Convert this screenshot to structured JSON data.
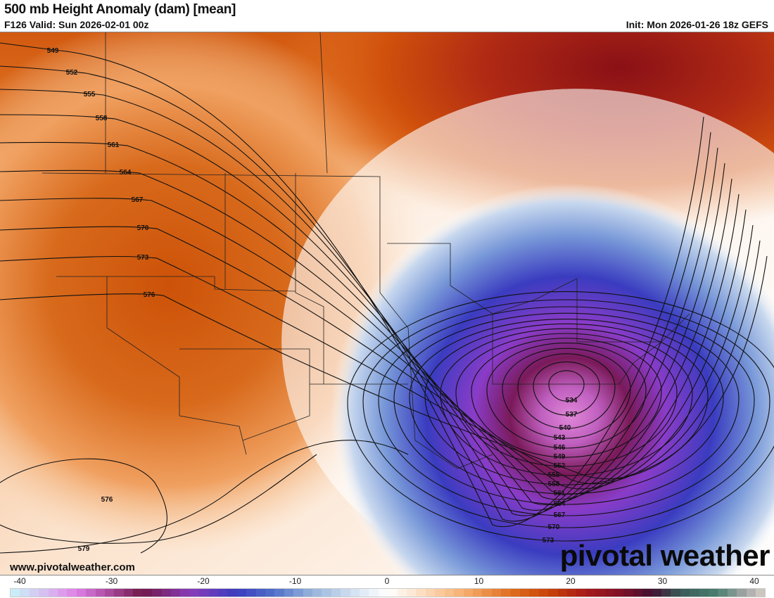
{
  "header": {
    "title": "500 mb Height Anomaly (dam) [mean]",
    "valid": "F126 Valid: Sun 2026-02-01 00z",
    "init": "Init: Mon 2026-01-26 18z GEFS"
  },
  "footer": {
    "website": "www.pivotalweather.com",
    "logo": "pivotal weather"
  },
  "map": {
    "field": "500 mb height anomaly",
    "contour_labels_west": [
      "549",
      "552",
      "555",
      "558",
      "561",
      "564",
      "567",
      "570",
      "573",
      "576"
    ],
    "contour_labels_east": [
      "534",
      "537",
      "540",
      "543",
      "546",
      "549",
      "552",
      "555",
      "558",
      "561",
      "564",
      "567",
      "570",
      "573"
    ],
    "contour_labels_southwest": [
      "576",
      "579"
    ],
    "colors": {
      "ridge": "#d05a10",
      "northeast_ridge": "#8a1418",
      "trough_core": "#d070d0",
      "trough_ring": "#8040d0",
      "trough_outer": "#3040c0"
    }
  },
  "colorbar": {
    "ticks": [
      "-40",
      "-30",
      "-20",
      "-10",
      "0",
      "10",
      "20",
      "30",
      "40"
    ],
    "min": -40,
    "max": 40,
    "stops": [
      [
        -40,
        "#c8f4f8"
      ],
      [
        -36,
        "#d8b8f0"
      ],
      [
        -33,
        "#e080e8"
      ],
      [
        -30,
        "#b050a8"
      ],
      [
        -26,
        "#701848"
      ],
      [
        -21,
        "#8a3cb8"
      ],
      [
        -16,
        "#3a3cc0"
      ],
      [
        -12,
        "#5070c8"
      ],
      [
        -8,
        "#98b4dc"
      ],
      [
        -3,
        "#dce8f4"
      ],
      [
        0,
        "#ffffff"
      ],
      [
        3,
        "#fde4cc"
      ],
      [
        8,
        "#f6b070"
      ],
      [
        13,
        "#e06e20"
      ],
      [
        17,
        "#c84408"
      ],
      [
        21,
        "#a81818"
      ],
      [
        25,
        "#7a1028"
      ],
      [
        28,
        "#401030"
      ],
      [
        31,
        "#3a5a58"
      ],
      [
        35,
        "#4a8070"
      ],
      [
        38,
        "#a8a8a8"
      ],
      [
        40,
        "#d8d0c8"
      ]
    ]
  }
}
